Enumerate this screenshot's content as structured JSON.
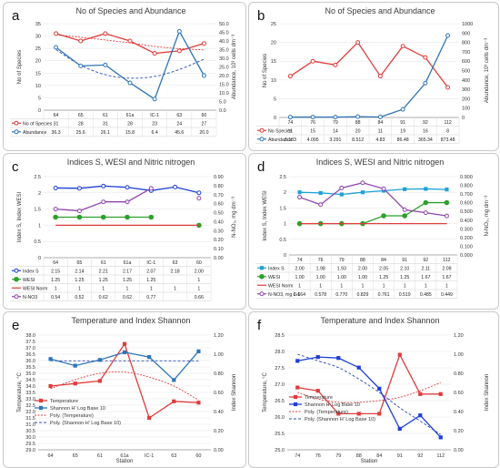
{
  "chart_data": [
    {
      "id": "a",
      "type": "line",
      "letter": "a",
      "title": "No of Species and Abundance",
      "x_label": "",
      "y_label": "No of Species",
      "y2_label": "Abundance, 10³ cells dm⁻³",
      "categories": [
        "64",
        "65",
        "61",
        "61a",
        "IC-1",
        "63",
        "60"
      ],
      "y_ticks": [
        0,
        5,
        10,
        15,
        20,
        25,
        30,
        35
      ],
      "y_ticks_text": [
        "0",
        "5",
        "10",
        "15",
        "20",
        "25",
        "30",
        "35"
      ],
      "y2_ticks": [
        0,
        5,
        10,
        15,
        20,
        25,
        30,
        35,
        40,
        45,
        50
      ],
      "y2_ticks_text": [
        "0.0",
        "5.0",
        "10.0",
        "15.0",
        "20.0",
        "25.0",
        "30.0",
        "35.0",
        "40.0",
        "45.0",
        "50.0"
      ],
      "series": [
        {
          "name": "No of Species",
          "axis": "left",
          "color": "#e03c3c",
          "values": [
            31,
            28,
            31,
            28,
            23,
            24,
            27
          ],
          "labels": [
            "31",
            "28",
            "31",
            "28",
            "23",
            "24",
            "27"
          ],
          "marker": "circle"
        },
        {
          "name": "Abundance",
          "axis": "right",
          "color": "#2e75b6",
          "values": [
            36.3,
            25.6,
            26.1,
            15.8,
            6.4,
            45.6,
            20.0
          ],
          "labels": [
            "36.3",
            "25.6",
            "26.1",
            "15.8",
            "6.4",
            "45.6",
            "20.0"
          ],
          "marker": "circle"
        }
      ],
      "trends": [
        {
          "axis": "left",
          "color": "#e03c3c",
          "values": [
            30.5,
            29.5,
            28.4,
            27.2,
            25.8,
            24.9,
            24.4
          ]
        },
        {
          "axis": "right",
          "color": "#2f4cb3",
          "values": [
            35,
            26,
            20.5,
            18.5,
            19.5,
            23.5,
            29.5
          ]
        }
      ]
    },
    {
      "id": "b",
      "type": "line",
      "letter": "b",
      "title": "No of Species and Abundance",
      "x_label": "",
      "y_label": "No of Species",
      "y2_label": "Abundance, 10³ cells dm⁻³",
      "categories": [
        "74",
        "76",
        "79",
        "88",
        "84",
        "91",
        "92",
        "112"
      ],
      "y_ticks": [
        0,
        5,
        10,
        15,
        20,
        25
      ],
      "y_ticks_text": [
        "0",
        "5",
        "10",
        "15",
        "20",
        "25"
      ],
      "y2_ticks": [
        0,
        100,
        200,
        300,
        400,
        500,
        600,
        700,
        800,
        900,
        1000
      ],
      "y2_ticks_text": [
        "0",
        "100",
        "200",
        "300",
        "400",
        "500",
        "600",
        "700",
        "800",
        "900",
        "1000"
      ],
      "series": [
        {
          "name": "No Species",
          "axis": "left",
          "color": "#e03c3c",
          "values": [
            11,
            15,
            14,
            20,
            11,
            19,
            16,
            8
          ],
          "labels": [
            "11",
            "15",
            "14",
            "20",
            "11",
            "19",
            "16",
            "8"
          ],
          "marker": "circle"
        },
        {
          "name": "Abundance",
          "axis": "right",
          "color": "#2e75b6",
          "values": [
            3.183,
            4.095,
            3.291,
            8.512,
            4.83,
            86.48,
            365.34,
            873.48
          ],
          "labels": [
            "3.183",
            "4.095",
            "3.291",
            "8.512",
            "4.83",
            "86.48",
            "365.34",
            "873.48"
          ],
          "marker": "circle"
        }
      ],
      "trends": []
    },
    {
      "id": "c",
      "type": "line",
      "letter": "c",
      "title": "Indices S, WESI and Nitric nitrogen",
      "x_label": "",
      "y_label": "Index S, Index WESI",
      "y2_label": "N-NO₃, mg dm⁻³",
      "categories": [
        "64",
        "65",
        "61",
        "61a",
        "IC-1",
        "63",
        "60"
      ],
      "y_ticks": [
        0,
        0.5,
        1,
        1.5,
        2,
        2.5
      ],
      "y_ticks_text": [
        "0",
        "0.5",
        "1",
        "1.5",
        "2",
        "2.5"
      ],
      "y2_ticks": [
        0,
        0.1,
        0.2,
        0.3,
        0.4,
        0.5,
        0.6,
        0.7,
        0.8,
        0.9
      ],
      "y2_ticks_text": [
        "0.00",
        "0.10",
        "0.20",
        "0.30",
        "0.40",
        "0.50",
        "0.60",
        "0.70",
        "0.80",
        "0.90"
      ],
      "series": [
        {
          "name": "Index S",
          "axis": "left",
          "color": "#1f3fd6",
          "values": [
            2.15,
            2.14,
            2.21,
            2.17,
            2.07,
            2.18,
            2.0
          ],
          "labels": [
            "2.15",
            "2.14",
            "2.21",
            "2.17",
            "2.07",
            "2.18",
            "2.00"
          ],
          "marker": "circle"
        },
        {
          "name": "WESI",
          "axis": "left",
          "color": "#2ca02c",
          "values": [
            1.25,
            1.25,
            1.25,
            1.25,
            1.25,
            null,
            1
          ],
          "labels": [
            "1.25",
            "1.25",
            "1.25",
            "1.25",
            "1.25",
            "",
            "1"
          ],
          "marker": "circle-filled"
        },
        {
          "name": "WESI Norm",
          "axis": "left",
          "color": "#e03c3c",
          "values": [
            1,
            1,
            1,
            1,
            1,
            1,
            1
          ],
          "labels": [
            "1",
            "1",
            "1",
            "1",
            "1",
            "1",
            "1"
          ],
          "marker": "none"
        },
        {
          "name": "N-NO3",
          "axis": "right",
          "color": "#8e44ad",
          "values": [
            0.54,
            0.52,
            0.62,
            0.62,
            0.77,
            null,
            0.66
          ],
          "labels": [
            "0.54",
            "0.52",
            "0.62",
            "0.62",
            "0.77",
            "",
            "0.66"
          ],
          "marker": "circle"
        }
      ],
      "trends": []
    },
    {
      "id": "d",
      "type": "line",
      "letter": "d",
      "title": "Indices S, WESI and Nitric nitrogen",
      "x_label": "",
      "y_label": "Index S, Index WESI",
      "y2_label": "N-NO₃, mg dm⁻³",
      "categories": [
        "74",
        "76",
        "79",
        "88",
        "84",
        "91",
        "92",
        "112"
      ],
      "y_ticks": [
        0,
        0.5,
        1,
        1.5,
        2,
        2.5
      ],
      "y_ticks_text": [
        "0",
        "0.5",
        "1",
        "1.5",
        "2",
        "2.5"
      ],
      "y2_ticks": [
        0,
        0.1,
        0.2,
        0.3,
        0.4,
        0.5,
        0.6,
        0.7,
        0.8,
        0.9
      ],
      "y2_ticks_text": [
        "0.000",
        "0.100",
        "0.200",
        "0.300",
        "0.400",
        "0.500",
        "0.600",
        "0.700",
        "0.800",
        "0.900"
      ],
      "series": [
        {
          "name": "Index S",
          "axis": "left",
          "color": "#1fa3d6",
          "values": [
            2.0,
            1.98,
            1.93,
            2.0,
            2.05,
            2.1,
            2.11,
            2.09
          ],
          "labels": [
            "2.00",
            "1.98",
            "1.93",
            "2.00",
            "2.05",
            "2.10",
            "2.11",
            "2.09"
          ],
          "marker": "square"
        },
        {
          "name": "WESI",
          "axis": "left",
          "color": "#2ca02c",
          "values": [
            1.0,
            1.0,
            1.0,
            1.0,
            1.25,
            1.25,
            1.67,
            1.67
          ],
          "labels": [
            "1.00",
            "1.00",
            "1.00",
            "1.00",
            "1.25",
            "1.25",
            "1.67",
            "1.67"
          ],
          "marker": "circle-filled"
        },
        {
          "name": "WESI Norm",
          "axis": "left",
          "color": "#e03c3c",
          "values": [
            1,
            1,
            1,
            1,
            1,
            1,
            1,
            1
          ],
          "labels": [
            "1",
            "1",
            "1",
            "1",
            "1",
            "1",
            "1",
            "1"
          ],
          "marker": "none"
        },
        {
          "name": "N-NO3, mg L-1",
          "axis": "right",
          "color": "#8e44ad",
          "values": [
            0.664,
            0.578,
            0.77,
            0.829,
            0.761,
            0.519,
            0.485,
            0.449
          ],
          "labels": [
            "0.664",
            "0.578",
            "0.770",
            "0.829",
            "0.761",
            "0.519",
            "0.485",
            "0.449"
          ],
          "marker": "circle"
        }
      ],
      "trends": []
    },
    {
      "id": "e",
      "type": "line",
      "letter": "e",
      "title": "Temperature and Index Shannon",
      "x_label": "Station",
      "y_label": "Temperature, °C",
      "y2_label": "Index Shannon",
      "categories": [
        "64",
        "65",
        "61",
        "61a",
        "IC-1",
        "63",
        "60"
      ],
      "y_ticks": [
        29,
        29.5,
        30,
        30.5,
        31,
        31.5,
        32,
        32.5,
        33,
        33.5,
        34,
        34.5,
        35,
        35.5,
        36,
        36.5,
        37,
        37.5,
        38
      ],
      "y_ticks_text": [
        "29.0",
        "29.5",
        "30.0",
        "30.5",
        "31.0",
        "31.5",
        "32.0",
        "32.5",
        "33.0",
        "33.5",
        "34.0",
        "34.5",
        "35.0",
        "35.5",
        "36.0",
        "36.5",
        "37.0",
        "37.5",
        "38.0"
      ],
      "y2_ticks": [
        0,
        0.2,
        0.4,
        0.6,
        0.8,
        1.0,
        1.2
      ],
      "y2_ticks_text": [
        "0.00",
        "0.20",
        "0.40",
        "0.60",
        "0.80",
        "1.00",
        "1.20"
      ],
      "series": [
        {
          "name": "Temperature",
          "axis": "left",
          "color": "#e03c3c",
          "values": [
            34.0,
            34.2,
            34.4,
            37.3,
            31.5,
            32.8,
            32.7
          ],
          "labels": [],
          "marker": "square"
        },
        {
          "name": "Shannon H' Log Base 10",
          "axis": "right",
          "color": "#2e75b6",
          "values": [
            0.95,
            0.88,
            0.94,
            1.02,
            0.97,
            0.73,
            1.03
          ],
          "labels": [],
          "marker": "square"
        }
      ],
      "trends": [
        {
          "name": "Poly. (Temperature)",
          "axis": "left",
          "color": "#e03c3c",
          "values": [
            33.8,
            34.5,
            35.0,
            35.1,
            34.7,
            34.0,
            32.9
          ]
        },
        {
          "name": "Poly. (Shannon H' Log Base 10)",
          "axis": "right",
          "color": "#2f4cb3",
          "values": [
            0.93,
            0.93,
            0.93,
            0.93,
            0.93,
            0.93,
            0.93
          ]
        }
      ]
    },
    {
      "id": "f",
      "type": "line",
      "letter": "f",
      "title": "Temperature and Index Shannon",
      "x_label": "Station",
      "y_label": "Temperature, °C",
      "y2_label": "Index Shannon",
      "categories": [
        "74",
        "76",
        "79",
        "88",
        "84",
        "91",
        "92",
        "112"
      ],
      "y_ticks": [
        25,
        25.5,
        26,
        26.5,
        27,
        27.5,
        28,
        28.5
      ],
      "y_ticks_text": [
        "25.0",
        "25.5",
        "26.0",
        "26.5",
        "27.0",
        "27.5",
        "28.0",
        "28.5"
      ],
      "y2_ticks": [
        0,
        0.2,
        0.4,
        0.6,
        0.8,
        1.0,
        1.2
      ],
      "y2_ticks_text": [
        "0.00",
        "0.20",
        "0.40",
        "0.60",
        "0.80",
        "1.00",
        "1.20"
      ],
      "series": [
        {
          "name": "Temperature",
          "axis": "left",
          "color": "#e03c3c",
          "values": [
            26.9,
            26.8,
            26.1,
            26.1,
            26.1,
            27.9,
            26.7,
            26.7
          ],
          "labels": [],
          "marker": "square"
        },
        {
          "name": "Shannon H' Log Base 10",
          "axis": "right",
          "color": "#1f3fd6",
          "values": [
            0.93,
            0.97,
            0.96,
            0.86,
            0.64,
            0.22,
            0.36,
            0.13
          ],
          "labels": [],
          "marker": "square"
        }
      ],
      "trends": [
        {
          "name": "Poly. (Temperature)",
          "axis": "left",
          "color": "#e03c3c",
          "values": [
            26.75,
            26.55,
            26.45,
            26.45,
            26.5,
            26.6,
            26.8,
            27.05
          ]
        },
        {
          "name": "Poly. (Shannon H' Log Base 10)",
          "axis": "right",
          "color": "#2f4cb3",
          "values": [
            1.0,
            0.93,
            0.86,
            0.74,
            0.6,
            0.44,
            0.3,
            0.16
          ]
        }
      ]
    }
  ]
}
